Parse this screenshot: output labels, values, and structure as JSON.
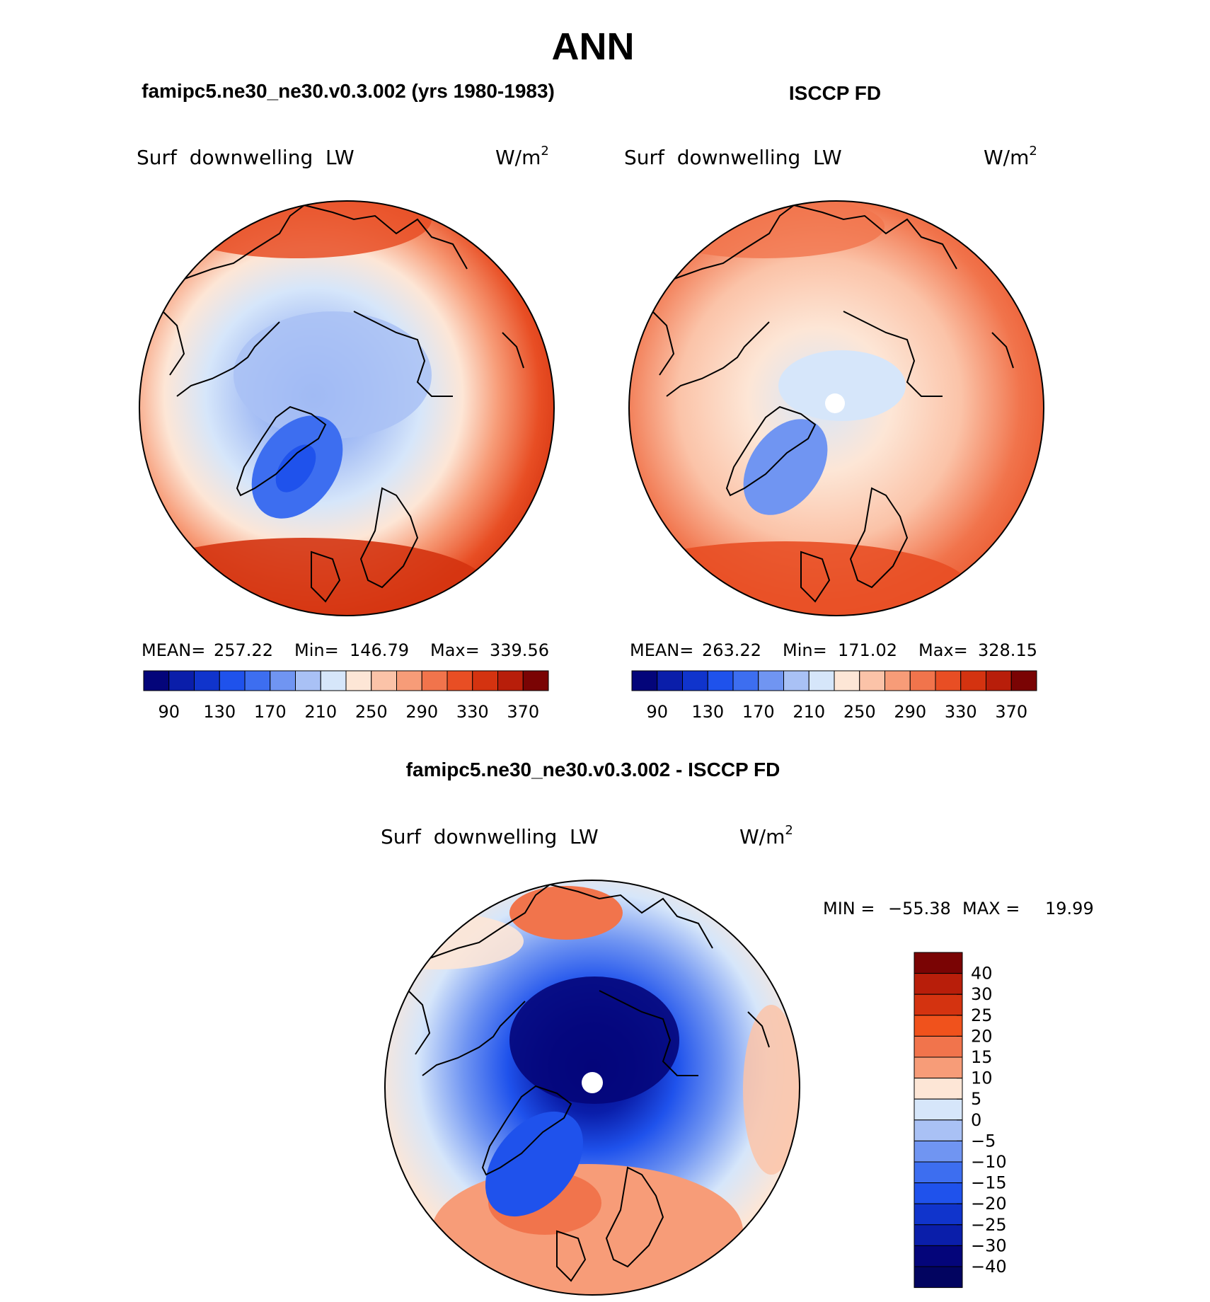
{
  "title": "ANN",
  "panels": [
    {
      "id": "model",
      "case_title": "famipc5.ne30_ne30.v0.3.002 (yrs 1980-1983)",
      "variable": "Surf  downwelling  LW",
      "units_base": "W/m",
      "units_exp": "2",
      "stats": {
        "mean_label": "MEAN=",
        "mean": "257.22",
        "min_label": "Min=",
        "min": "146.79",
        "max_label": "Max=",
        "max": "339.56"
      }
    },
    {
      "id": "obs",
      "case_title": "ISCCP FD",
      "variable": "Surf  downwelling  LW",
      "units_base": "W/m",
      "units_exp": "2",
      "stats": {
        "mean_label": "MEAN=",
        "mean": "263.22",
        "min_label": "Min=",
        "min": "171.02",
        "max_label": "Max=",
        "max": "328.15"
      }
    }
  ],
  "abs_colorbar": {
    "labels": [
      "90",
      "130",
      "170",
      "210",
      "250",
      "290",
      "330",
      "370"
    ],
    "colors": [
      "#04057a",
      "#0a1eaa",
      "#1034cc",
      "#1f52ec",
      "#3d6ef0",
      "#7095f2",
      "#a9c1f5",
      "#d6e6fa",
      "#fde6d6",
      "#fbc3a8",
      "#f79c78",
      "#f1744c",
      "#e84e24",
      "#d43310",
      "#b81e0a",
      "#7a0404"
    ]
  },
  "diff_panel": {
    "case_title": "famipc5.ne30_ne30.v0.3.002 - ISCCP FD",
    "variable": "Surf  downwelling  LW",
    "units_base": "W/m",
    "units_exp": "2",
    "minmax": {
      "min_label": "MIN =",
      "min": "−55.38",
      "max_label": "MAX =",
      "max": "19.99"
    }
  },
  "diff_colorbar": {
    "labels": [
      "40",
      "30",
      "25",
      "20",
      "15",
      "10",
      "5",
      "0",
      "−5",
      "−10",
      "−15",
      "−20",
      "−25",
      "−30",
      "−40"
    ],
    "colors": [
      "#7a0404",
      "#b81e0a",
      "#d43310",
      "#f0521c",
      "#f1744c",
      "#f79c78",
      "#fde6d6",
      "#d6e6fa",
      "#a9c1f5",
      "#7095f2",
      "#3d6ef0",
      "#1f52ec",
      "#1034cc",
      "#0a1eaa",
      "#04057a",
      "#020460"
    ]
  }
}
